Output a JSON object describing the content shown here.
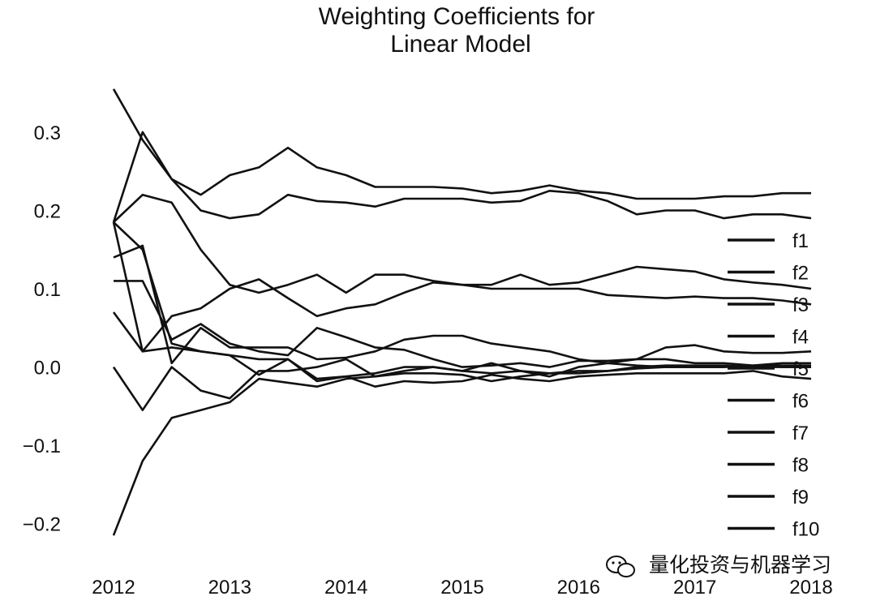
{
  "chart_data": {
    "type": "line",
    "title": [
      "Weighting Coefficients for",
      "Linear Model"
    ],
    "xlabel": "",
    "ylabel": "",
    "xlim": [
      2012,
      2018
    ],
    "ylim": [
      -0.22,
      0.36
    ],
    "x_ticks": [
      "2012",
      "2013",
      "2014",
      "2015",
      "2016",
      "2017",
      "2018"
    ],
    "y_ticks": [
      "0.3",
      "0.2",
      "0.1",
      "0.0",
      "−0.1",
      "−0.2"
    ],
    "legend_position": "right",
    "grid": false,
    "line_color": "#111111",
    "x": [
      2012.0,
      2012.25,
      2012.5,
      2012.75,
      2013.0,
      2013.25,
      2013.5,
      2013.75,
      2014.0,
      2014.25,
      2014.5,
      2014.75,
      2015.0,
      2015.25,
      2015.5,
      2015.75,
      2016.0,
      2016.25,
      2016.5,
      2016.75,
      2017.0,
      2017.25,
      2017.5,
      2017.75,
      2018.0
    ],
    "series": [
      {
        "name": "f1",
        "values": [
          0.355,
          0.29,
          0.24,
          0.2,
          0.19,
          0.195,
          0.22,
          0.212,
          0.21,
          0.205,
          0.215,
          0.215,
          0.215,
          0.21,
          0.212,
          0.225,
          0.222,
          0.212,
          0.195,
          0.2,
          0.2,
          0.19,
          0.195,
          0.195,
          0.19
        ]
      },
      {
        "name": "f2",
        "values": [
          0.185,
          0.3,
          0.24,
          0.22,
          0.245,
          0.255,
          0.28,
          0.255,
          0.245,
          0.23,
          0.23,
          0.23,
          0.228,
          0.222,
          0.225,
          0.232,
          0.225,
          0.222,
          0.215,
          0.215,
          0.215,
          0.218,
          0.218,
          0.222,
          0.222
        ]
      },
      {
        "name": "f3",
        "values": [
          0.185,
          0.22,
          0.21,
          0.15,
          0.105,
          0.095,
          0.105,
          0.118,
          0.095,
          0.118,
          0.118,
          0.11,
          0.105,
          0.105,
          0.118,
          0.105,
          0.108,
          0.118,
          0.128,
          0.125,
          0.122,
          0.112,
          0.108,
          0.105,
          0.1
        ]
      },
      {
        "name": "f4",
        "values": [
          0.185,
          0.02,
          0.065,
          0.075,
          0.1,
          0.112,
          0.088,
          0.065,
          0.075,
          0.08,
          0.095,
          0.108,
          0.105,
          0.1,
          0.1,
          0.1,
          0.1,
          0.092,
          0.09,
          0.088,
          0.09,
          0.088,
          0.088,
          0.085,
          0.08
        ]
      },
      {
        "name": "f5",
        "values": [
          0.11,
          0.11,
          0.035,
          0.055,
          0.03,
          0.02,
          0.015,
          0.05,
          0.038,
          0.025,
          0.022,
          0.01,
          0.0,
          0.002,
          0.005,
          0.0,
          0.008,
          0.008,
          0.01,
          0.025,
          0.028,
          0.02,
          0.018,
          0.018,
          0.02
        ]
      },
      {
        "name": "f6",
        "values": [
          0.14,
          0.155,
          0.005,
          0.05,
          0.025,
          0.025,
          0.025,
          0.01,
          0.012,
          0.02,
          0.035,
          0.04,
          0.04,
          0.03,
          0.025,
          0.02,
          0.01,
          0.005,
          0.002,
          0.0,
          0.0,
          0.0,
          0.002,
          0.005,
          0.005
        ]
      },
      {
        "name": "f7",
        "values": [
          0.07,
          0.02,
          0.025,
          0.02,
          0.015,
          -0.01,
          0.01,
          -0.018,
          -0.012,
          -0.025,
          -0.018,
          -0.02,
          -0.018,
          -0.01,
          -0.015,
          -0.018,
          -0.012,
          -0.01,
          -0.008,
          -0.008,
          -0.008,
          -0.008,
          -0.005,
          -0.012,
          -0.015
        ]
      },
      {
        "name": "f8",
        "values": [
          0.0,
          -0.055,
          0.0,
          -0.03,
          -0.04,
          -0.005,
          -0.005,
          0.0,
          0.01,
          -0.012,
          -0.005,
          0.0,
          -0.005,
          -0.008,
          -0.005,
          -0.008,
          -0.005,
          -0.005,
          0.0,
          0.002,
          0.002,
          0.002,
          0.0,
          0.0,
          0.0
        ]
      },
      {
        "name": "f9",
        "values": [
          -0.215,
          -0.12,
          -0.065,
          -0.055,
          -0.045,
          -0.015,
          -0.02,
          -0.025,
          -0.015,
          -0.012,
          -0.008,
          -0.008,
          -0.01,
          -0.018,
          -0.012,
          -0.008,
          -0.008,
          -0.005,
          -0.002,
          0.0,
          0.0,
          0.0,
          0.002,
          0.002,
          0.002
        ]
      },
      {
        "name": "f10",
        "values": [
          0.185,
          0.15,
          0.03,
          0.02,
          0.015,
          0.01,
          0.01,
          -0.015,
          -0.012,
          -0.008,
          0.0,
          0.0,
          -0.005,
          0.005,
          -0.005,
          -0.012,
          0.0,
          0.005,
          0.01,
          0.01,
          0.005,
          0.005,
          0.002,
          0.0,
          0.0
        ]
      }
    ]
  },
  "watermark": {
    "text": "量化投资与机器学习",
    "icon": "wechat-icon"
  }
}
